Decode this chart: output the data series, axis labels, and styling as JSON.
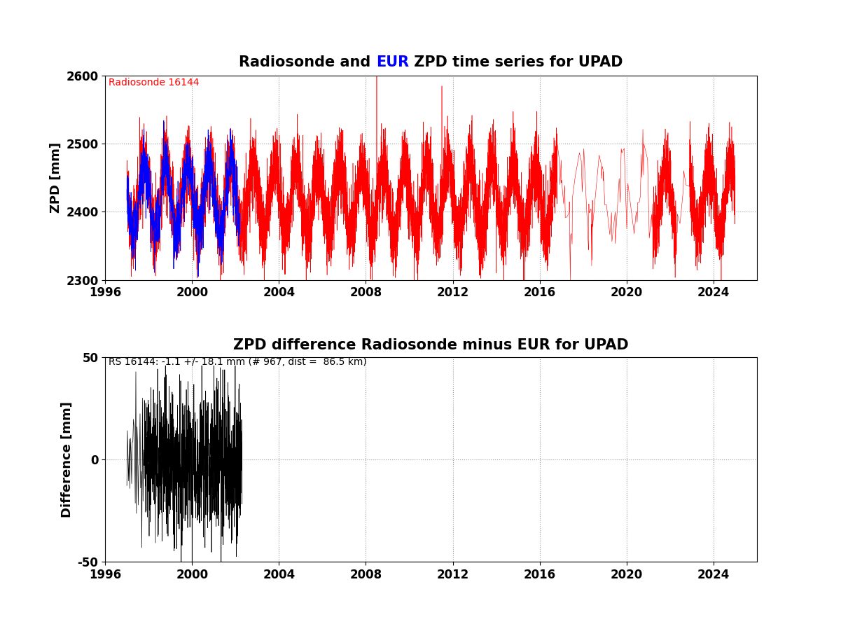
{
  "title1_black1": "Radiosonde and ",
  "title1_blue": "EUR",
  "title1_black2": " ZPD time series for UPAD",
  "title2": "ZPD difference Radiosonde minus EUR for UPAD",
  "ylabel1": "ZPD [mm]",
  "ylabel2": "Difference [mm]",
  "ylim1": [
    2300,
    2600
  ],
  "ylim2": [
    -50,
    50
  ],
  "xlim": [
    1996,
    2026
  ],
  "xticks": [
    1996,
    2000,
    2004,
    2008,
    2012,
    2016,
    2020,
    2024
  ],
  "yticks1": [
    2300,
    2400,
    2500,
    2600
  ],
  "yticks2": [
    -50,
    0,
    50
  ],
  "legend_text1": "Radiosonde 16144",
  "annotation2": "RS 16144: -1.1 +/- 18.1 mm (# 967, dist =  86.5 km)",
  "red_color": "#FF0000",
  "blue_color": "#0000FF",
  "black_color": "#000000",
  "background": "#FFFFFF",
  "seed": 42
}
